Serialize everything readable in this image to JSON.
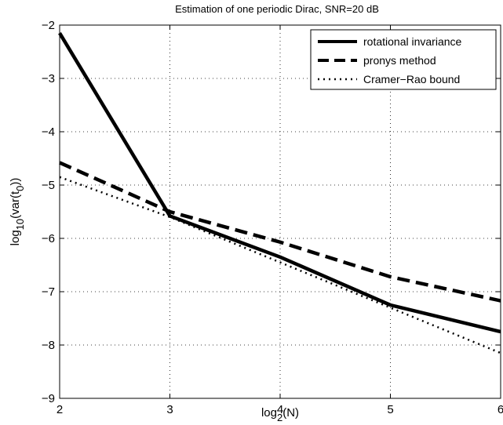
{
  "chart_data": {
    "type": "line",
    "title": "Estimation of one periodic Dirac, SNR=20 dB",
    "xlabel": {
      "base": "log",
      "sub": "2",
      "rest": "(N)"
    },
    "ylabel": {
      "base": "log",
      "sub": "10",
      "mid": "(var(t",
      "sub2": "0",
      "end": "))"
    },
    "xlim": [
      2,
      6
    ],
    "ylim": [
      -9,
      -2
    ],
    "x_ticks": [
      2,
      3,
      4,
      5,
      6
    ],
    "y_ticks": [
      -9,
      -8,
      -7,
      -6,
      -5,
      -4,
      -3,
      -2
    ],
    "grid": true,
    "legend_position": "top-right",
    "x": [
      2,
      3,
      4,
      5,
      6
    ],
    "series": [
      {
        "name": "rotational invariance",
        "style": "solid",
        "values": [
          -2.15,
          -5.58,
          -6.35,
          -7.25,
          -7.75
        ]
      },
      {
        "name": "pronys method",
        "style": "dashed",
        "values": [
          -4.58,
          -5.5,
          -6.07,
          -6.72,
          -7.17
        ]
      },
      {
        "name": "Cramer−Rao bound",
        "style": "dotted",
        "values": [
          -4.85,
          -5.6,
          -6.45,
          -7.3,
          -8.15
        ]
      }
    ]
  }
}
